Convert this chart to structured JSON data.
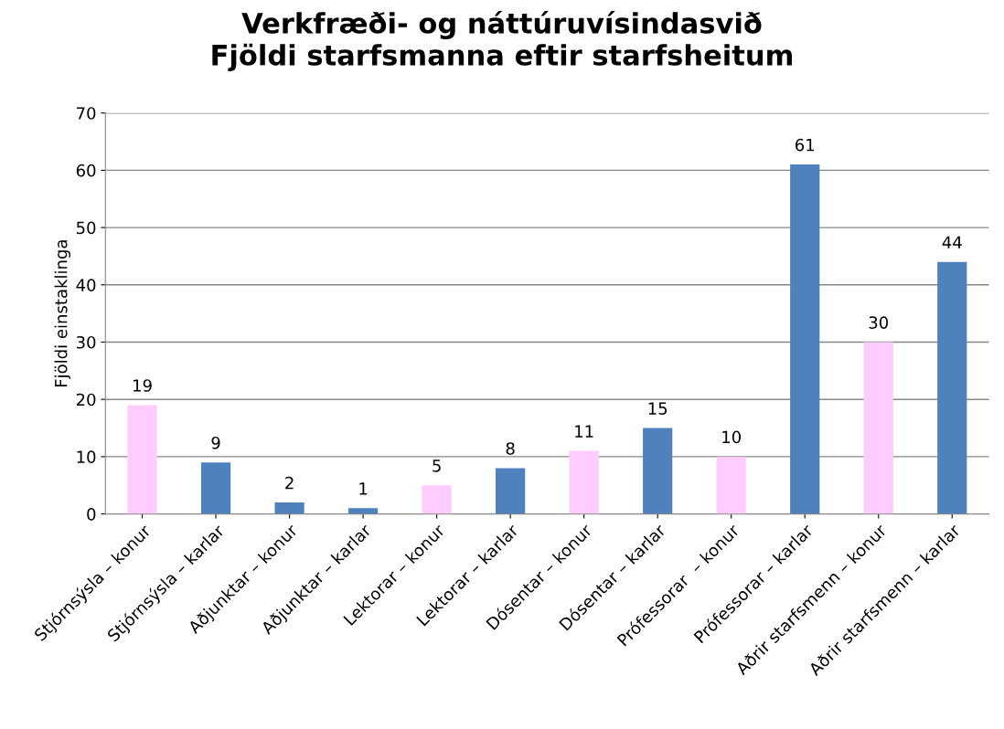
{
  "chart_data": {
    "type": "bar",
    "title": "Verkfræði- og náttúruvísindasvið\nFjöldi starfsmanna eftir starfsheitum",
    "ylabel": "Fjöldi einstaklinga",
    "categories": [
      "Stjórnsýsla – konur",
      "Stjórnsýsla – karlar",
      "Aðjunktar – konur",
      "Aðjunktar – karlar",
      "Lektorar – konur",
      "Lektorar – karlar",
      "Dósentar – konur",
      "Dósentar – karlar",
      "Prófessorar  – konur",
      "Prófessorar – karlar",
      "Aðrir starfsmenn – konur",
      "Aðrir starfsmenn – karlar"
    ],
    "values": [
      19,
      9,
      2,
      1,
      5,
      8,
      11,
      15,
      10,
      61,
      30,
      44
    ],
    "colors": [
      "#ffccff",
      "#4f81bd",
      "#4f81bd",
      "#4f81bd",
      "#ffccff",
      "#4f81bd",
      "#ffccff",
      "#4f81bd",
      "#ffccff",
      "#4f81bd",
      "#ffccff",
      "#4f81bd"
    ],
    "ylim": [
      0,
      70
    ],
    "yticks": [
      0,
      10,
      20,
      30,
      40,
      50,
      60,
      70
    ],
    "grid": "y",
    "data_labels": true,
    "legend": false
  }
}
